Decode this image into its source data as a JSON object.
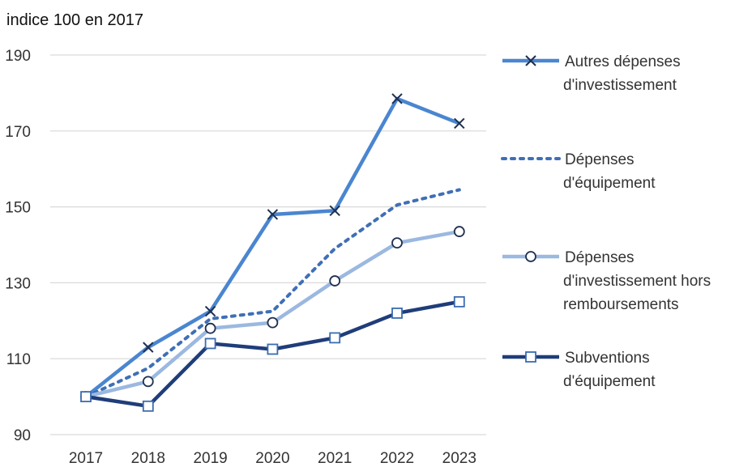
{
  "chart_data": {
    "type": "line",
    "title": "",
    "unit_label": "indice 100 en 2017",
    "x": [
      "2017",
      "2018",
      "2019",
      "2020",
      "2021",
      "2022",
      "2023"
    ],
    "ylim": [
      90,
      190
    ],
    "yticks": [
      "90",
      "110",
      "130",
      "150",
      "170",
      "190"
    ],
    "grid": true,
    "legend_position": "right",
    "series": [
      {
        "name": "Autres dépenses d'investissement",
        "legend_lines": [
          "Autres dépenses",
          "d'investissement"
        ],
        "color": "#4a86d0",
        "style": "solid",
        "marker": "x",
        "values": [
          100,
          113,
          122.5,
          148,
          149,
          178.5,
          172
        ]
      },
      {
        "name": "Dépenses d'équipement",
        "legend_lines": [
          "Dépenses",
          "d'équipement"
        ],
        "color": "#3f6fb5",
        "style": "dotted",
        "marker": "none",
        "values": [
          100,
          107.5,
          120.5,
          122.5,
          139,
          150.5,
          154.5
        ]
      },
      {
        "name": "Dépenses d'investissement hors remboursements",
        "legend_lines": [
          "Dépenses",
          "d'investissement hors",
          "remboursements"
        ],
        "color": "#9bb8e0",
        "style": "solid",
        "marker": "circle",
        "values": [
          100,
          104,
          118,
          119.5,
          130.5,
          140.5,
          143.5
        ]
      },
      {
        "name": "Subventions d'équipement",
        "legend_lines": [
          "Subventions",
          "d'équipement"
        ],
        "color": "#1f3d7a",
        "style": "solid",
        "marker": "square",
        "values": [
          100,
          97.5,
          114,
          112.5,
          115.5,
          122,
          125
        ]
      }
    ]
  }
}
